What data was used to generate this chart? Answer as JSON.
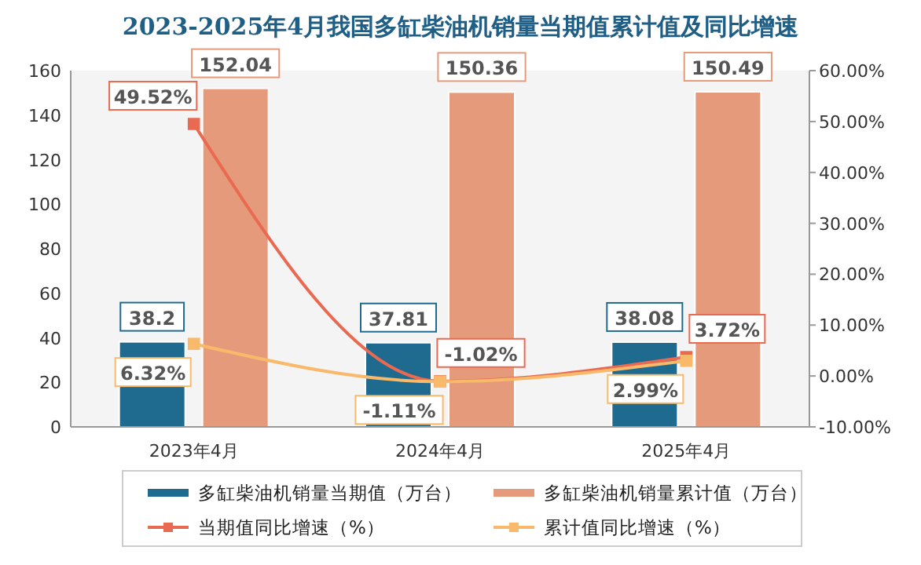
{
  "chart_data": {
    "type": "bar",
    "title": "2023-2025年4月我国多缸柴油机销量当期值累计值及同比增速",
    "categories": [
      "2023年4月",
      "2024年4月",
      "2025年4月"
    ],
    "series": [
      {
        "name": "多缸柴油机销量当期值（万台）",
        "color": "#1f6a8f",
        "values": [
          38.2,
          37.81,
          38.08
        ],
        "value_labels": [
          "38.2",
          "37.81",
          "38.08"
        ]
      },
      {
        "name": "多缸柴油机销量累计值（万台）",
        "color": "#e59b7b",
        "values": [
          152.04,
          150.36,
          150.49
        ],
        "value_labels": [
          "152.04",
          "150.36",
          "150.49"
        ]
      },
      {
        "name": "当期值同比增速（%）",
        "type": "line",
        "axis": "y2",
        "color": "#ea6a51",
        "values": [
          49.52,
          -1.02,
          3.72
        ],
        "value_labels": [
          "49.52%",
          "-1.02%",
          "3.72%"
        ]
      },
      {
        "name": "累计值同比增速（%）",
        "type": "line",
        "axis": "y2",
        "color": "#f8b96a",
        "values": [
          6.32,
          -1.11,
          2.99
        ],
        "value_labels": [
          "6.32%",
          "-1.11%",
          "2.99%"
        ]
      }
    ],
    "ylim": [
      0,
      160
    ],
    "yticks": [
      0,
      20,
      40,
      60,
      80,
      100,
      120,
      140,
      160
    ],
    "y2lim": [
      -10,
      60
    ],
    "y2ticks": [
      {
        "value": -10,
        "label": "-10.00%"
      },
      {
        "value": 0,
        "label": "0.00%"
      },
      {
        "value": 10,
        "label": "10.00%"
      },
      {
        "value": 20,
        "label": "20.00%"
      },
      {
        "value": 30,
        "label": "30.00%"
      },
      {
        "value": 40,
        "label": "40.00%"
      },
      {
        "value": 50,
        "label": "50.00%"
      },
      {
        "value": 60,
        "label": "60.00%"
      }
    ],
    "marker": "square",
    "grid": false,
    "legend": "bottom"
  }
}
